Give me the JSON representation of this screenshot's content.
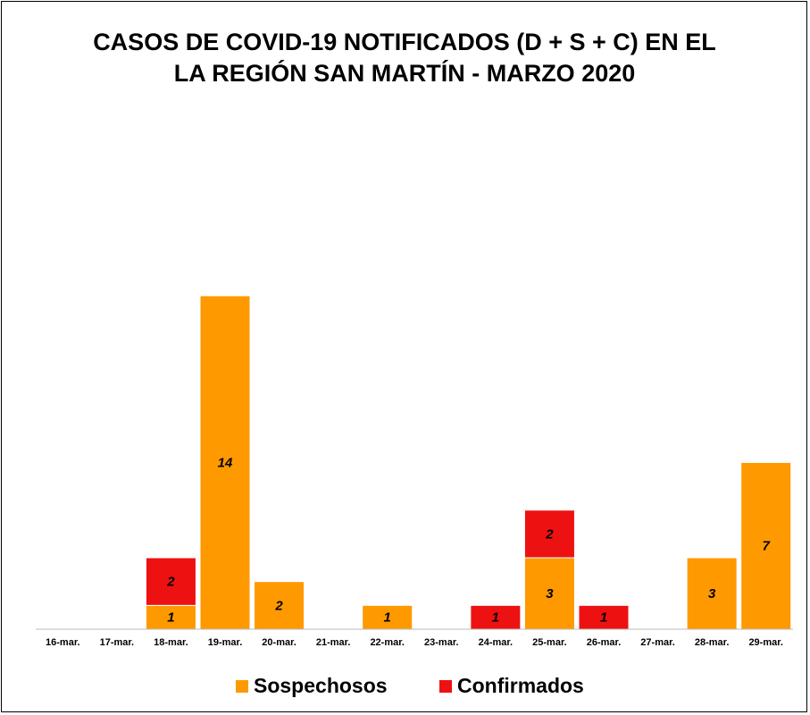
{
  "chart_data": {
    "type": "stacked_bar",
    "title": "CASOS DE COVID-19 NOTIFICADOS (D + S + C) EN EL LA REGIÓN SAN MARTÍN - MARZO 2020",
    "categories": [
      "16-mar.",
      "17-mar.",
      "18-mar.",
      "19-mar.",
      "20-mar.",
      "21-mar.",
      "22-mar.",
      "23-mar.",
      "24-mar.",
      "25-mar.",
      "26-mar.",
      "27-mar.",
      "28-mar.",
      "29-mar."
    ],
    "series": [
      {
        "name": "Sospechosos",
        "color": "#ff9900",
        "values": [
          0,
          0,
          1,
          14,
          2,
          0,
          1,
          0,
          0,
          3,
          0,
          0,
          3,
          7
        ]
      },
      {
        "name": "Confirmados",
        "color": "#ee1111",
        "values": [
          0,
          0,
          2,
          0,
          0,
          0,
          0,
          0,
          1,
          2,
          1,
          0,
          0,
          0
        ]
      }
    ],
    "ylim": [
      0,
      20
    ],
    "legend": "bottom"
  }
}
